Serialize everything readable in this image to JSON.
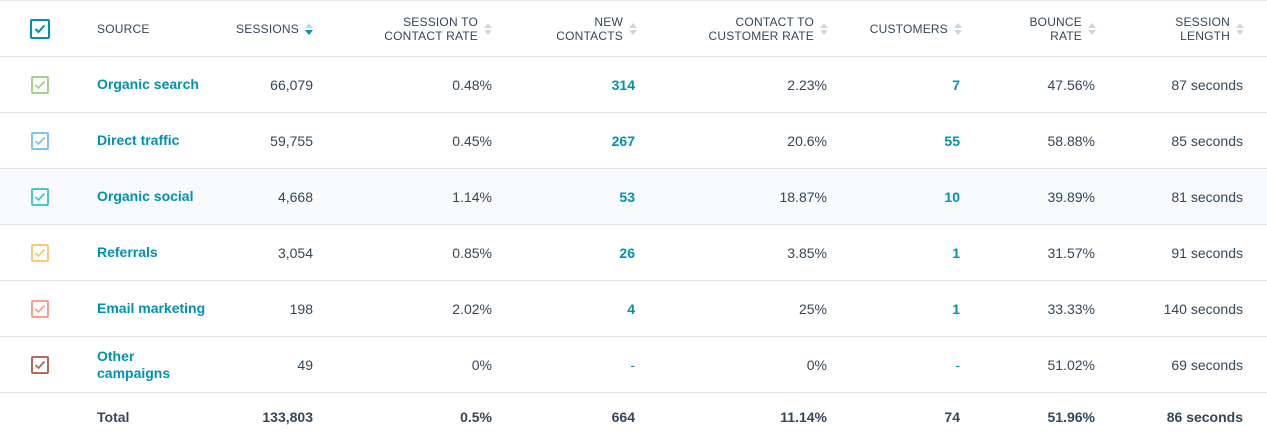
{
  "columns": [
    {
      "key": "source",
      "label": "SOURCE"
    },
    {
      "key": "sessions",
      "label": "SESSIONS"
    },
    {
      "key": "session_to_contact_rate",
      "label_line1": "SESSION TO",
      "label_line2": "CONTACT RATE"
    },
    {
      "key": "new_contacts",
      "label_line1": "NEW",
      "label_line2": "CONTACTS"
    },
    {
      "key": "contact_to_customer_rate",
      "label_line1": "CONTACT TO",
      "label_line2": "CUSTOMER RATE"
    },
    {
      "key": "customers",
      "label": "CUSTOMERS"
    },
    {
      "key": "bounce_rate",
      "label_line1": "BOUNCE",
      "label_line2": "RATE"
    },
    {
      "key": "session_length",
      "label_line1": "SESSION",
      "label_line2": "LENGTH"
    }
  ],
  "sort": {
    "column": "sessions",
    "direction": "descending"
  },
  "header_checkbox": {
    "checked": true,
    "color": "#0091ae"
  },
  "rows": [
    {
      "source": "Organic search",
      "color": "#a3d18a",
      "sessions": "66,079",
      "session_to_contact_rate": "0.48%",
      "new_contacts": "314",
      "contact_to_customer_rate": "2.23%",
      "customers": "7",
      "bounce_rate": "47.56%",
      "session_length": "87 seconds"
    },
    {
      "source": "Direct traffic",
      "color": "#7fc3ee",
      "sessions": "59,755",
      "session_to_contact_rate": "0.45%",
      "new_contacts": "267",
      "contact_to_customer_rate": "20.6%",
      "customers": "55",
      "bounce_rate": "58.88%",
      "session_length": "85 seconds"
    },
    {
      "source": "Organic social",
      "color": "#4dc6cc",
      "sessions": "4,668",
      "session_to_contact_rate": "1.14%",
      "new_contacts": "53",
      "contact_to_customer_rate": "18.87%",
      "customers": "10",
      "bounce_rate": "39.89%",
      "session_length": "81 seconds"
    },
    {
      "source": "Referrals",
      "color": "#f8c97a",
      "sessions": "3,054",
      "session_to_contact_rate": "0.85%",
      "new_contacts": "26",
      "contact_to_customer_rate": "3.85%",
      "customers": "1",
      "bounce_rate": "31.57%",
      "session_length": "91 seconds"
    },
    {
      "source": "Email marketing",
      "color": "#f5a08c",
      "sessions": "198",
      "session_to_contact_rate": "2.02%",
      "new_contacts": "4",
      "contact_to_customer_rate": "25%",
      "customers": "1",
      "bounce_rate": "33.33%",
      "session_length": "140 seconds"
    },
    {
      "source": "Other campaigns",
      "color": "#b0685a",
      "sessions": "49",
      "session_to_contact_rate": "0%",
      "new_contacts": "-",
      "contact_to_customer_rate": "0%",
      "customers": "-",
      "bounce_rate": "51.02%",
      "session_length": "69 seconds"
    }
  ],
  "total": {
    "source": "Total",
    "sessions": "133,803",
    "session_to_contact_rate": "0.5%",
    "new_contacts": "664",
    "contact_to_customer_rate": "11.14%",
    "customers": "74",
    "bounce_rate": "51.96%",
    "session_length": "86 seconds"
  }
}
